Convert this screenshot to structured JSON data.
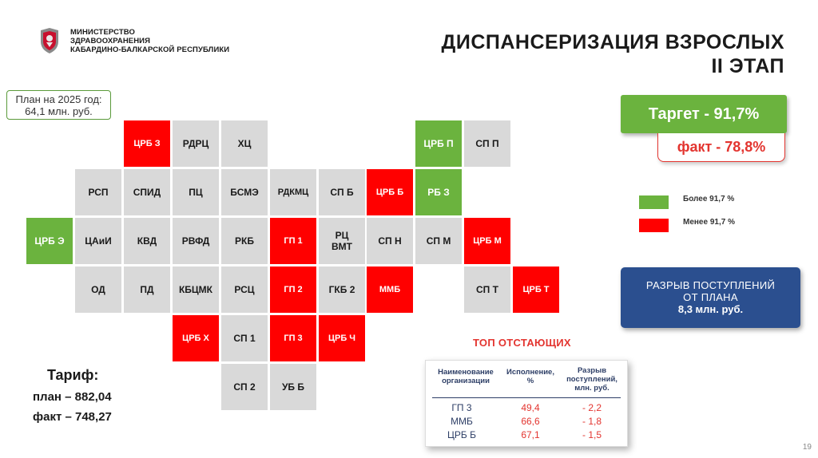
{
  "header": {
    "org_line1": "МИНИСТЕРСТВО",
    "org_line2": "ЗДРАВООХРАНЕНИЯ",
    "org_line3": "КАБАРДИНО-БАЛКАРСКОЙ РЕСПУБЛИКИ",
    "title_line1": "ДИСПАНСЕРИЗАЦИЯ ВЗРОСЛЫХ",
    "title_line2": "II ЭТАП"
  },
  "plan": {
    "line1": "План на 2025 год:",
    "line2": "64,1 млн. руб."
  },
  "grid": {
    "r1": [
      "ЦРБ З",
      "РДРЦ",
      "ХЦ",
      "ЦРБ П",
      "СП П"
    ],
    "r2": [
      "РСП",
      "СПИД",
      "ПЦ",
      "БСМЭ",
      "РДКМЦ",
      "СП Б",
      "ЦРБ Б",
      "РБ З"
    ],
    "r3": [
      "ЦРБ Э",
      "ЦАиИ",
      "КВД",
      "РВФД",
      "РКБ",
      "ГП 1",
      "РЦ ВМТ",
      "СП Н",
      "СП М",
      "ЦРБ М"
    ],
    "r4": [
      "ОД",
      "ПД",
      "КБЦМК",
      "РСЦ",
      "ГП 2",
      "ГКБ 2",
      "ММБ",
      "СП Т",
      "ЦРБ Т"
    ],
    "r5": [
      "ЦРБ Х",
      "СП 1",
      "ГП 3",
      "ЦРБ Ч"
    ],
    "r6": [
      "СП 2",
      "УБ Б"
    ]
  },
  "target": {
    "label": "Таргет  -  91,7%"
  },
  "fact": {
    "label": "факт  -  78,8%"
  },
  "legend": {
    "above": "Более 91,7 %",
    "below": "Менее 91,7 %",
    "above_color": "#6bb33e",
    "below_color": "#ff0000"
  },
  "gap": {
    "line1": "РАЗРЫВ ПОСТУПЛЕНИЙ",
    "line2": "ОТ ПЛАНА",
    "line3": "8,3 млн. руб."
  },
  "tariff": {
    "heading": "Тариф:",
    "plan": "план – 882,04",
    "fact": "факт – 748,27"
  },
  "top_lagging": {
    "title": "ТОП ОТСТАЮЩИХ",
    "headers": {
      "name_1": "Наименование",
      "name_2": "организации",
      "exec_1": "Исполнение,",
      "exec_2": "%",
      "gap_1": "Разрыв",
      "gap_2": "поступлений,",
      "gap_3": "млн. руб."
    },
    "rows": [
      {
        "name": "ГП 3",
        "exec": "49,4",
        "gap": "- 2,2"
      },
      {
        "name": "ММБ",
        "exec": "66,6",
        "gap": "- 1,8"
      },
      {
        "name": "ЦРБ Б",
        "exec": "67,1",
        "gap": "- 1,5"
      }
    ]
  },
  "page_number": "19"
}
